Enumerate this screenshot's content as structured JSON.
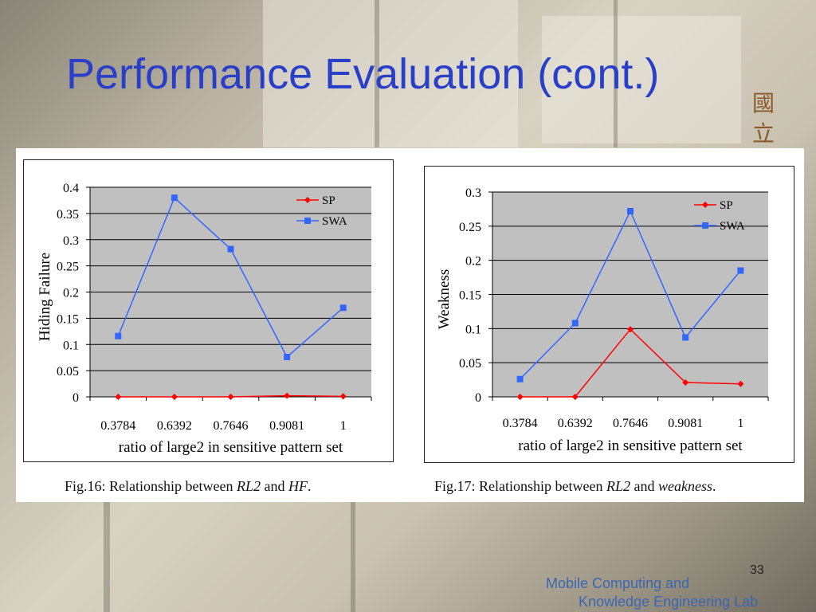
{
  "slide": {
    "title": "Performance Evaluation (cont.)",
    "side_glyphs": [
      "國",
      "立"
    ],
    "page_number": "33",
    "lab_line1": "Mobile Computing and",
    "lab_line2": "Knowledge Engineering Lab",
    "title_color": "#2a3fc8"
  },
  "captions": [
    {
      "prefix": "Fig.16: Relationship between ",
      "term1": "RL2",
      "middle": " and ",
      "term2": "HF",
      "suffix": "."
    },
    {
      "prefix": "Fig.17: Relationship between ",
      "term1": "RL2",
      "middle": " and ",
      "term2": "weakness",
      "suffix": "."
    }
  ],
  "chart_data": [
    {
      "type": "line",
      "title": "",
      "xlabel": "ratio of large2 in sensitive pattern set",
      "ylabel": "Hiding Failure",
      "categories": [
        "0.3784",
        "0.6392",
        "0.7646",
        "0.9081",
        "1"
      ],
      "ylim": [
        0,
        0.4
      ],
      "yticks": [
        0,
        0.05,
        0.1,
        0.15,
        0.2,
        0.25,
        0.3,
        0.35,
        0.4
      ],
      "ytick_labels": [
        "0",
        "0.05",
        "0.1",
        "0.15",
        "0.2",
        "0.25",
        "0.3",
        "0.35",
        "0.4"
      ],
      "grid": true,
      "legend_position": "top-right",
      "plot_background": "#c0c0c0",
      "series": [
        {
          "name": "SP",
          "values": [
            0,
            0,
            0,
            0.002,
            0.001
          ],
          "color": "#ff0000",
          "marker": "diamond"
        },
        {
          "name": "SWA",
          "values": [
            0.116,
            0.38,
            0.282,
            0.076,
            0.17
          ],
          "color": "#3366ff",
          "marker": "square"
        }
      ]
    },
    {
      "type": "line",
      "title": "",
      "xlabel": "ratio of large2 in sensitive pattern set",
      "ylabel": "Weakness",
      "categories": [
        "0.3784",
        "0.6392",
        "0.7646",
        "0.9081",
        "1"
      ],
      "ylim": [
        0,
        0.3
      ],
      "yticks": [
        0,
        0.05,
        0.1,
        0.15,
        0.2,
        0.25,
        0.3
      ],
      "ytick_labels": [
        "0",
        "0.05",
        "0.1",
        "0.15",
        "0.2",
        "0.25",
        "0.3"
      ],
      "grid": true,
      "legend_position": "top-right",
      "plot_background": "#c0c0c0",
      "series": [
        {
          "name": "SP",
          "values": [
            0,
            0,
            0.099,
            0.021,
            0.019
          ],
          "color": "#ff0000",
          "marker": "diamond"
        },
        {
          "name": "SWA",
          "values": [
            0.026,
            0.108,
            0.272,
            0.087,
            0.185
          ],
          "color": "#3366ff",
          "marker": "square"
        }
      ]
    }
  ]
}
